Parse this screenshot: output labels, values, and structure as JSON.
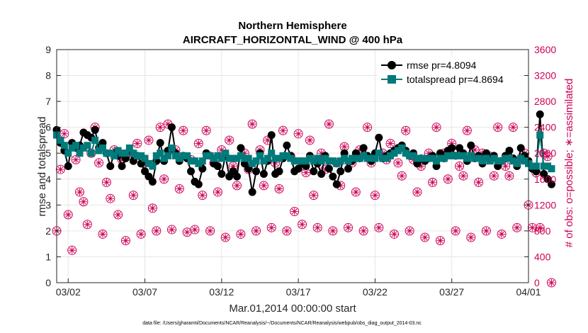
{
  "chart_data": {
    "type": "line",
    "title": "Northern Hemisphere",
    "subtitle": "AIRCRAFT_HORIZONTAL_WIND @ 400 hPa",
    "xlabel": "Mar.01,2014 00:00:00 start",
    "ylabel_left": "rmse and totalspread",
    "ylabel_right": "# of obs: o=possible; ∗=assimilated",
    "footer": "data file: /Users/gharamti/Documents/NCAR/Reanalysis/~/Documents/NCAR/Reanalysis/webpub/obs_diag_output_2014-03.nc",
    "x_ticks": [
      "03/02",
      "03/07",
      "03/12",
      "03/17",
      "03/22",
      "03/27",
      "04/01"
    ],
    "x_tick_days": [
      1,
      6,
      11,
      16,
      21,
      26,
      31
    ],
    "xlim_days": [
      0.25,
      31.0
    ],
    "ylim_left": [
      0,
      9
    ],
    "yticks_left": [
      "0",
      "1",
      "2",
      "3",
      "4",
      "5",
      "6",
      "7",
      "8",
      "9"
    ],
    "ylim_right": [
      0,
      3600
    ],
    "yticks_right": [
      "0",
      "400",
      "800",
      "1200",
      "1600",
      "2000",
      "2400",
      "2800",
      "3200",
      "3600"
    ],
    "grid": true,
    "legend_position": "top-right",
    "colors": {
      "rmse": "#000000",
      "totalspread": "#007a7a",
      "obs": "#cc0055"
    },
    "series": [
      {
        "name": "rmse pr=4.8094",
        "axis": "left",
        "x_start_day": 0.25,
        "x_step_days": 0.25,
        "values": [
          5.9,
          5.4,
          5.1,
          4.5,
          5.4,
          5.2,
          5.3,
          5.8,
          5.7,
          5.6,
          5.9,
          5.2,
          5.4,
          5.0,
          4.5,
          5.0,
          4.9,
          4.5,
          4.8,
          5.1,
          4.7,
          4.9,
          4.6,
          4.3,
          4.1,
          3.9,
          4.7,
          5.4,
          4.7,
          5.1,
          6.0,
          5.0,
          4.7,
          4.9,
          4.8,
          4.3,
          3.9,
          3.8,
          4.4,
          5.0,
          4.9,
          4.6,
          4.5,
          4.2,
          4.9,
          4.1,
          4.3,
          4.1,
          5.2,
          4.6,
          4.4,
          3.5,
          4.3,
          5.0,
          4.2,
          4.7,
          5.7,
          4.2,
          4.3,
          4.8,
          5.3,
          4.9,
          4.3,
          4.4,
          4.6,
          4.5,
          4.9,
          4.3,
          4.6,
          4.2,
          4.9,
          4.4,
          4.1,
          3.8,
          4.3,
          5.0,
          4.4,
          4.7,
          5.0,
          4.8,
          5.2,
          4.9,
          4.7,
          5.0,
          5.6,
          4.8,
          4.9,
          5.0,
          5.1,
          5.2,
          5.3,
          5.1,
          4.9,
          5.0,
          4.6,
          4.8,
          4.7,
          4.8,
          4.9,
          4.5,
          5.0,
          4.8,
          5.1,
          5.2,
          4.9,
          5.2,
          5.0,
          4.7,
          5.3,
          4.8,
          4.9,
          4.6,
          5.0,
          4.8,
          4.9,
          4.5,
          4.7,
          4.9,
          5.1,
          4.8,
          4.5,
          5.2,
          4.9,
          4.7,
          4.4,
          4.3,
          6.5,
          4.2,
          4.0,
          3.8
        ]
      },
      {
        "name": "totalspread pr=4.8694",
        "axis": "left",
        "x_start_day": 0.25,
        "x_step_days": 0.25,
        "values": [
          5.7,
          5.5,
          5.3,
          5.0,
          5.2,
          5.3,
          5.0,
          5.2,
          5.3,
          5.0,
          5.5,
          5.1,
          5.2,
          5.0,
          5.0,
          4.9,
          5.1,
          5.0,
          5.0,
          5.2,
          5.0,
          4.9,
          4.9,
          4.8,
          4.6,
          4.5,
          4.9,
          5.0,
          4.8,
          4.9,
          5.2,
          4.9,
          4.8,
          4.9,
          4.9,
          4.7,
          4.7,
          4.6,
          4.7,
          4.9,
          4.9,
          4.8,
          4.9,
          4.8,
          5.0,
          4.8,
          4.8,
          4.8,
          4.9,
          4.8,
          4.8,
          4.6,
          4.7,
          4.9,
          4.7,
          4.8,
          5.0,
          4.8,
          4.8,
          4.9,
          4.9,
          4.8,
          4.7,
          4.7,
          4.7,
          4.7,
          4.8,
          4.7,
          4.8,
          4.7,
          4.8,
          4.7,
          4.7,
          4.6,
          4.7,
          4.8,
          4.7,
          4.8,
          4.8,
          4.8,
          4.9,
          4.8,
          4.8,
          4.8,
          5.0,
          4.8,
          4.8,
          4.9,
          5.0,
          5.1,
          5.2,
          5.0,
          4.9,
          4.9,
          4.8,
          4.8,
          4.8,
          4.8,
          4.8,
          4.7,
          4.8,
          4.8,
          4.9,
          4.9,
          4.9,
          4.9,
          4.9,
          4.8,
          4.9,
          4.8,
          4.8,
          4.7,
          4.8,
          4.7,
          4.8,
          4.7,
          4.7,
          4.8,
          4.8,
          4.7,
          4.6,
          4.8,
          4.7,
          4.6,
          4.5,
          4.5,
          5.7,
          4.5,
          4.5,
          4.4
        ]
      },
      {
        "name": "# obs possible",
        "axis": "right",
        "marker": "circle",
        "x_start_day": 0.25,
        "x_step_days": 0.25,
        "values": [
          800,
          1750,
          2300,
          1050,
          500,
          1900,
          1400,
          1250,
          900,
          2000,
          2400,
          1850,
          750,
          1550,
          1300,
          2050,
          1050,
          1900,
          650,
          2000,
          1350,
          2150,
          750,
          1850,
          2200,
          1150,
          800,
          2400,
          1600,
          2450,
          820,
          2050,
          1450,
          2350,
          780,
          1900,
          820,
          2150,
          1350,
          2350,
          800,
          1850,
          1400,
          2050,
          700,
          2200,
          1800,
          1500,
          750,
          2000,
          1750,
          2450,
          800,
          2050,
          1500,
          2200,
          850,
          1850,
          1450,
          2350,
          800,
          1950,
          1100,
          2300,
          900,
          1700,
          2200,
          1350,
          850,
          2000,
          1750,
          2450,
          800,
          1850,
          1500,
          2100,
          850,
          1850,
          1400,
          2050,
          800,
          2400,
          1850,
          1350,
          850,
          2000,
          1900,
          2150,
          750,
          1850,
          1650,
          2350,
          800,
          1900,
          1400,
          1800,
          700,
          2000,
          1550,
          2400,
          650,
          2000,
          1600,
          2150,
          800,
          1800,
          1650,
          2350,
          700,
          2050,
          1550,
          2000,
          800,
          1950,
          1650,
          2400,
          750,
          1800,
          1650,
          2400,
          850,
          1900,
          2000,
          1200,
          850,
          1700,
          850,
          2000,
          1950,
          0
        ]
      }
    ]
  }
}
